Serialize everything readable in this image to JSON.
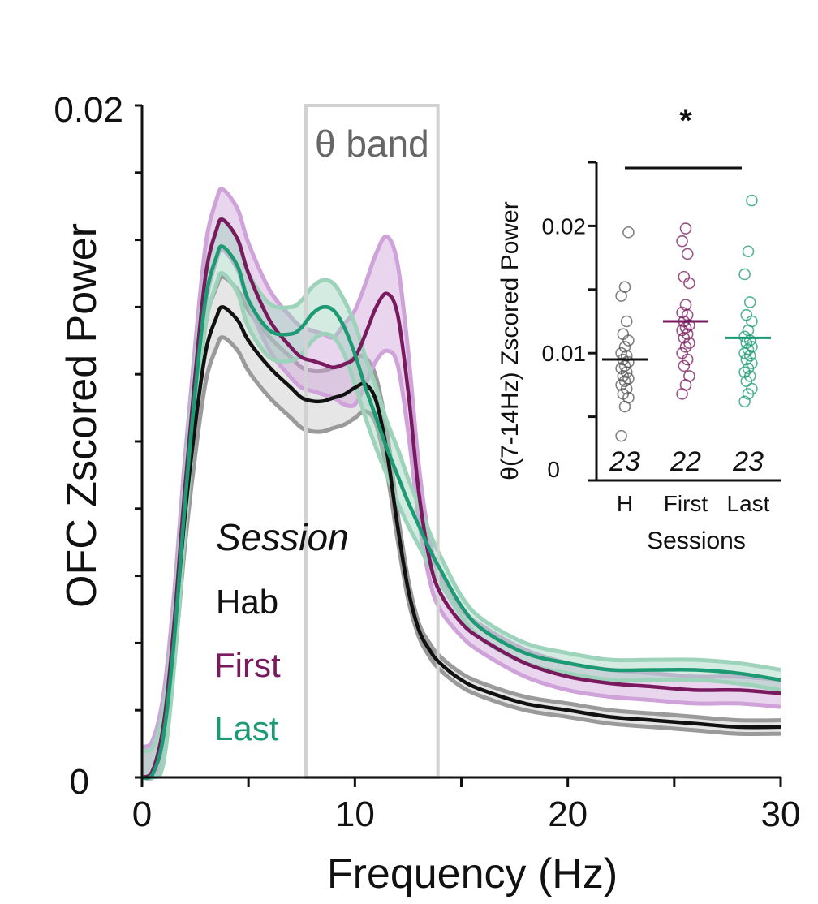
{
  "chart_data": [
    {
      "type": "line",
      "title": "",
      "xlabel": "Frequency (Hz)",
      "ylabel": "OFC Zscored Power",
      "xlim": [
        0,
        30
      ],
      "ylim": [
        0,
        0.02
      ],
      "x_ticks": [
        0,
        10,
        20,
        30
      ],
      "x_tick_labels": [
        "0",
        "10",
        "20",
        "30"
      ],
      "y_tick_labels": [
        "0",
        "0.02"
      ],
      "y_minor_ticks": [
        0,
        0.002,
        0.004,
        0.006,
        0.008,
        0.01,
        0.012,
        0.014,
        0.016,
        0.018,
        0.02
      ],
      "x_minor_ticks": [
        0,
        5,
        10,
        15,
        20,
        25,
        30
      ],
      "shaded_band": {
        "label": "θ band",
        "x_range": [
          7.7,
          13.9
        ]
      },
      "legend": {
        "title": "Session",
        "placement": "lower-left"
      },
      "x": [
        0,
        0.5,
        1,
        1.5,
        2,
        2.5,
        3,
        3.5,
        3.8,
        4.5,
        5,
        6,
        7,
        7.5,
        8,
        8.5,
        9,
        9.5,
        10,
        10.5,
        11,
        11.5,
        12,
        12.5,
        13,
        13.5,
        14,
        15,
        16,
        18,
        20,
        22,
        24,
        26,
        28,
        30
      ],
      "series": [
        {
          "name": "Hab",
          "color": "#111111",
          "band_color": "#9a9a9a",
          "values": [
            0,
            0.0002,
            0.0015,
            0.0042,
            0.0077,
            0.0105,
            0.0127,
            0.0137,
            0.014,
            0.0136,
            0.013,
            0.0122,
            0.0116,
            0.0113,
            0.0112,
            0.0112,
            0.0113,
            0.0114,
            0.0116,
            0.0117,
            0.0112,
            0.0097,
            0.0075,
            0.0056,
            0.0044,
            0.0038,
            0.0034,
            0.0029,
            0.0026,
            0.0022,
            0.002,
            0.0018,
            0.0017,
            0.0016,
            0.0015,
            0.0015
          ],
          "band": [
            0.0009,
            0.0009,
            0.0009,
            0.0009,
            0.0009,
            0.0009,
            0.0009,
            0.0009,
            0.0009,
            0.0009,
            0.0009,
            0.0009,
            0.0009,
            0.0009,
            0.0009,
            0.0009,
            0.0009,
            0.0009,
            0.0009,
            0.0008,
            0.0007,
            0.0006,
            0.0004,
            0.0003,
            0.0002,
            0.0002,
            0.0002,
            0.0002,
            0.0002,
            0.0002,
            0.0002,
            0.0002,
            0.0002,
            0.0002,
            0.0002,
            0.0002
          ]
        },
        {
          "name": "First",
          "color": "#7a1a5e",
          "band_color": "#cfa3d9",
          "values": [
            0,
            0.0002,
            0.0015,
            0.0045,
            0.0085,
            0.012,
            0.015,
            0.0163,
            0.0166,
            0.016,
            0.015,
            0.0136,
            0.0128,
            0.0125,
            0.0124,
            0.0123,
            0.0122,
            0.0123,
            0.0125,
            0.0132,
            0.014,
            0.0144,
            0.0138,
            0.0115,
            0.0085,
            0.0065,
            0.0055,
            0.0046,
            0.0041,
            0.0034,
            0.003,
            0.0028,
            0.0027,
            0.0026,
            0.0026,
            0.0025
          ],
          "band": [
            0.0009,
            0.0009,
            0.0009,
            0.0009,
            0.0009,
            0.0009,
            0.0009,
            0.0009,
            0.0009,
            0.0009,
            0.0009,
            0.0009,
            0.0009,
            0.0009,
            0.0009,
            0.0009,
            0.0009,
            0.0012,
            0.0014,
            0.0015,
            0.0016,
            0.0017,
            0.0015,
            0.0012,
            0.0008,
            0.0006,
            0.0005,
            0.0004,
            0.0004,
            0.0004,
            0.0004,
            0.0004,
            0.0004,
            0.0004,
            0.0004,
            0.0004
          ]
        },
        {
          "name": "Last",
          "color": "#1b9a73",
          "band_color": "#9ed3bb",
          "values": [
            0,
            0.0001,
            0.0012,
            0.004,
            0.008,
            0.0115,
            0.0143,
            0.0155,
            0.0158,
            0.0152,
            0.0142,
            0.0133,
            0.0132,
            0.0134,
            0.0138,
            0.014,
            0.0139,
            0.0134,
            0.0126,
            0.0116,
            0.0107,
            0.0098,
            0.009,
            0.0082,
            0.0075,
            0.0068,
            0.0062,
            0.0051,
            0.0044,
            0.0037,
            0.0034,
            0.0032,
            0.0032,
            0.0032,
            0.0031,
            0.0029
          ],
          "band": [
            0.0008,
            0.0008,
            0.0008,
            0.0008,
            0.0008,
            0.0008,
            0.0008,
            0.0008,
            0.0008,
            0.0008,
            0.0008,
            0.0008,
            0.0008,
            0.0008,
            0.0008,
            0.0008,
            0.0008,
            0.0008,
            0.0009,
            0.0009,
            0.0009,
            0.0008,
            0.0008,
            0.0007,
            0.0006,
            0.0005,
            0.0004,
            0.0003,
            0.0003,
            0.0003,
            0.0003,
            0.0003,
            0.0003,
            0.0003,
            0.0003,
            0.0003
          ]
        }
      ]
    },
    {
      "type": "scatter",
      "title": "",
      "xlabel": "Sessions",
      "ylabel": "θ(7-14Hz) Zscored Power",
      "ylim": [
        0,
        0.025
      ],
      "y_ticks": [
        0,
        0.005,
        0.01,
        0.015,
        0.02,
        0.025
      ],
      "y_tick_labels": [
        "0",
        "0.01",
        "0.02"
      ],
      "categories": [
        "H",
        "First",
        "Last"
      ],
      "significance": "*",
      "groups": [
        {
          "name": "H",
          "color": "#555555",
          "n": "23",
          "mean": 0.0095,
          "points": [
            0.0035,
            0.0058,
            0.0065,
            0.0068,
            0.0072,
            0.0075,
            0.0078,
            0.008,
            0.0082,
            0.0085,
            0.0088,
            0.009,
            0.0093,
            0.0095,
            0.0098,
            0.01,
            0.0105,
            0.011,
            0.0115,
            0.0125,
            0.0145,
            0.0152,
            0.0195
          ]
        },
        {
          "name": "First",
          "color": "#7a1a5e",
          "n": "22",
          "mean": 0.0125,
          "points": [
            0.0068,
            0.0075,
            0.0082,
            0.009,
            0.0095,
            0.01,
            0.0105,
            0.0108,
            0.0112,
            0.0115,
            0.0118,
            0.012,
            0.0122,
            0.0125,
            0.013,
            0.0132,
            0.0138,
            0.0155,
            0.016,
            0.0178,
            0.0188,
            0.0198
          ]
        },
        {
          "name": "Last",
          "color": "#1b9a73",
          "n": "23",
          "mean": 0.0112,
          "points": [
            0.0062,
            0.0068,
            0.0072,
            0.0078,
            0.0082,
            0.0085,
            0.0088,
            0.0092,
            0.0095,
            0.0098,
            0.01,
            0.0103,
            0.0105,
            0.0108,
            0.011,
            0.0113,
            0.0118,
            0.0125,
            0.013,
            0.014,
            0.0162,
            0.018,
            0.022
          ]
        }
      ]
    }
  ]
}
